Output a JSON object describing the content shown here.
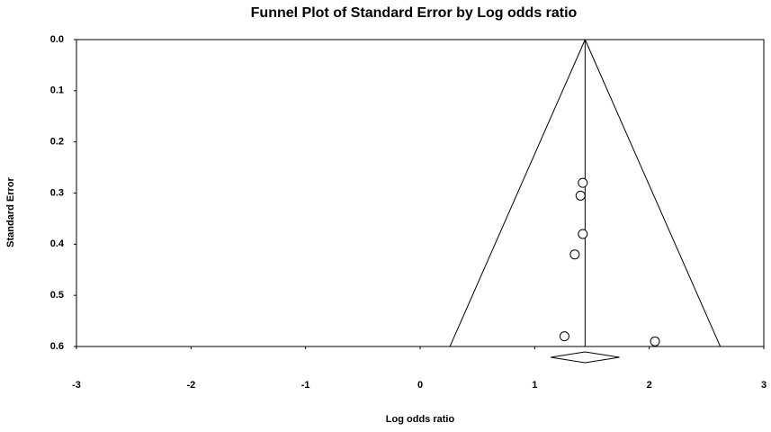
{
  "chart_data": {
    "type": "scatter",
    "title": "Funnel Plot of Standard Error by Log odds ratio",
    "x_label": "Log odds ratio",
    "y_label": "Standard Error",
    "x": [
      1.42,
      1.4,
      1.42,
      1.35,
      1.26,
      2.05
    ],
    "values": [
      0.28,
      0.305,
      0.38,
      0.42,
      0.58,
      0.59
    ],
    "color": "#000000",
    "xlim": [
      -3,
      3
    ],
    "xticks": [
      -3,
      -2,
      -1,
      0,
      1,
      2,
      3
    ],
    "ylim": [
      0,
      0.6
    ],
    "yticks": [
      {
        "value": 0,
        "label": "0.0"
      },
      0.1,
      0.2,
      0.3,
      0.4,
      0.5,
      0.6
    ],
    "y_inverted": true,
    "funnel": {
      "center": 1.44,
      "bottom_left": 0.26,
      "bottom_right": 2.62
    },
    "summary": {
      "estimate": 1.44,
      "lower": 1.14,
      "upper": 1.74
    }
  }
}
